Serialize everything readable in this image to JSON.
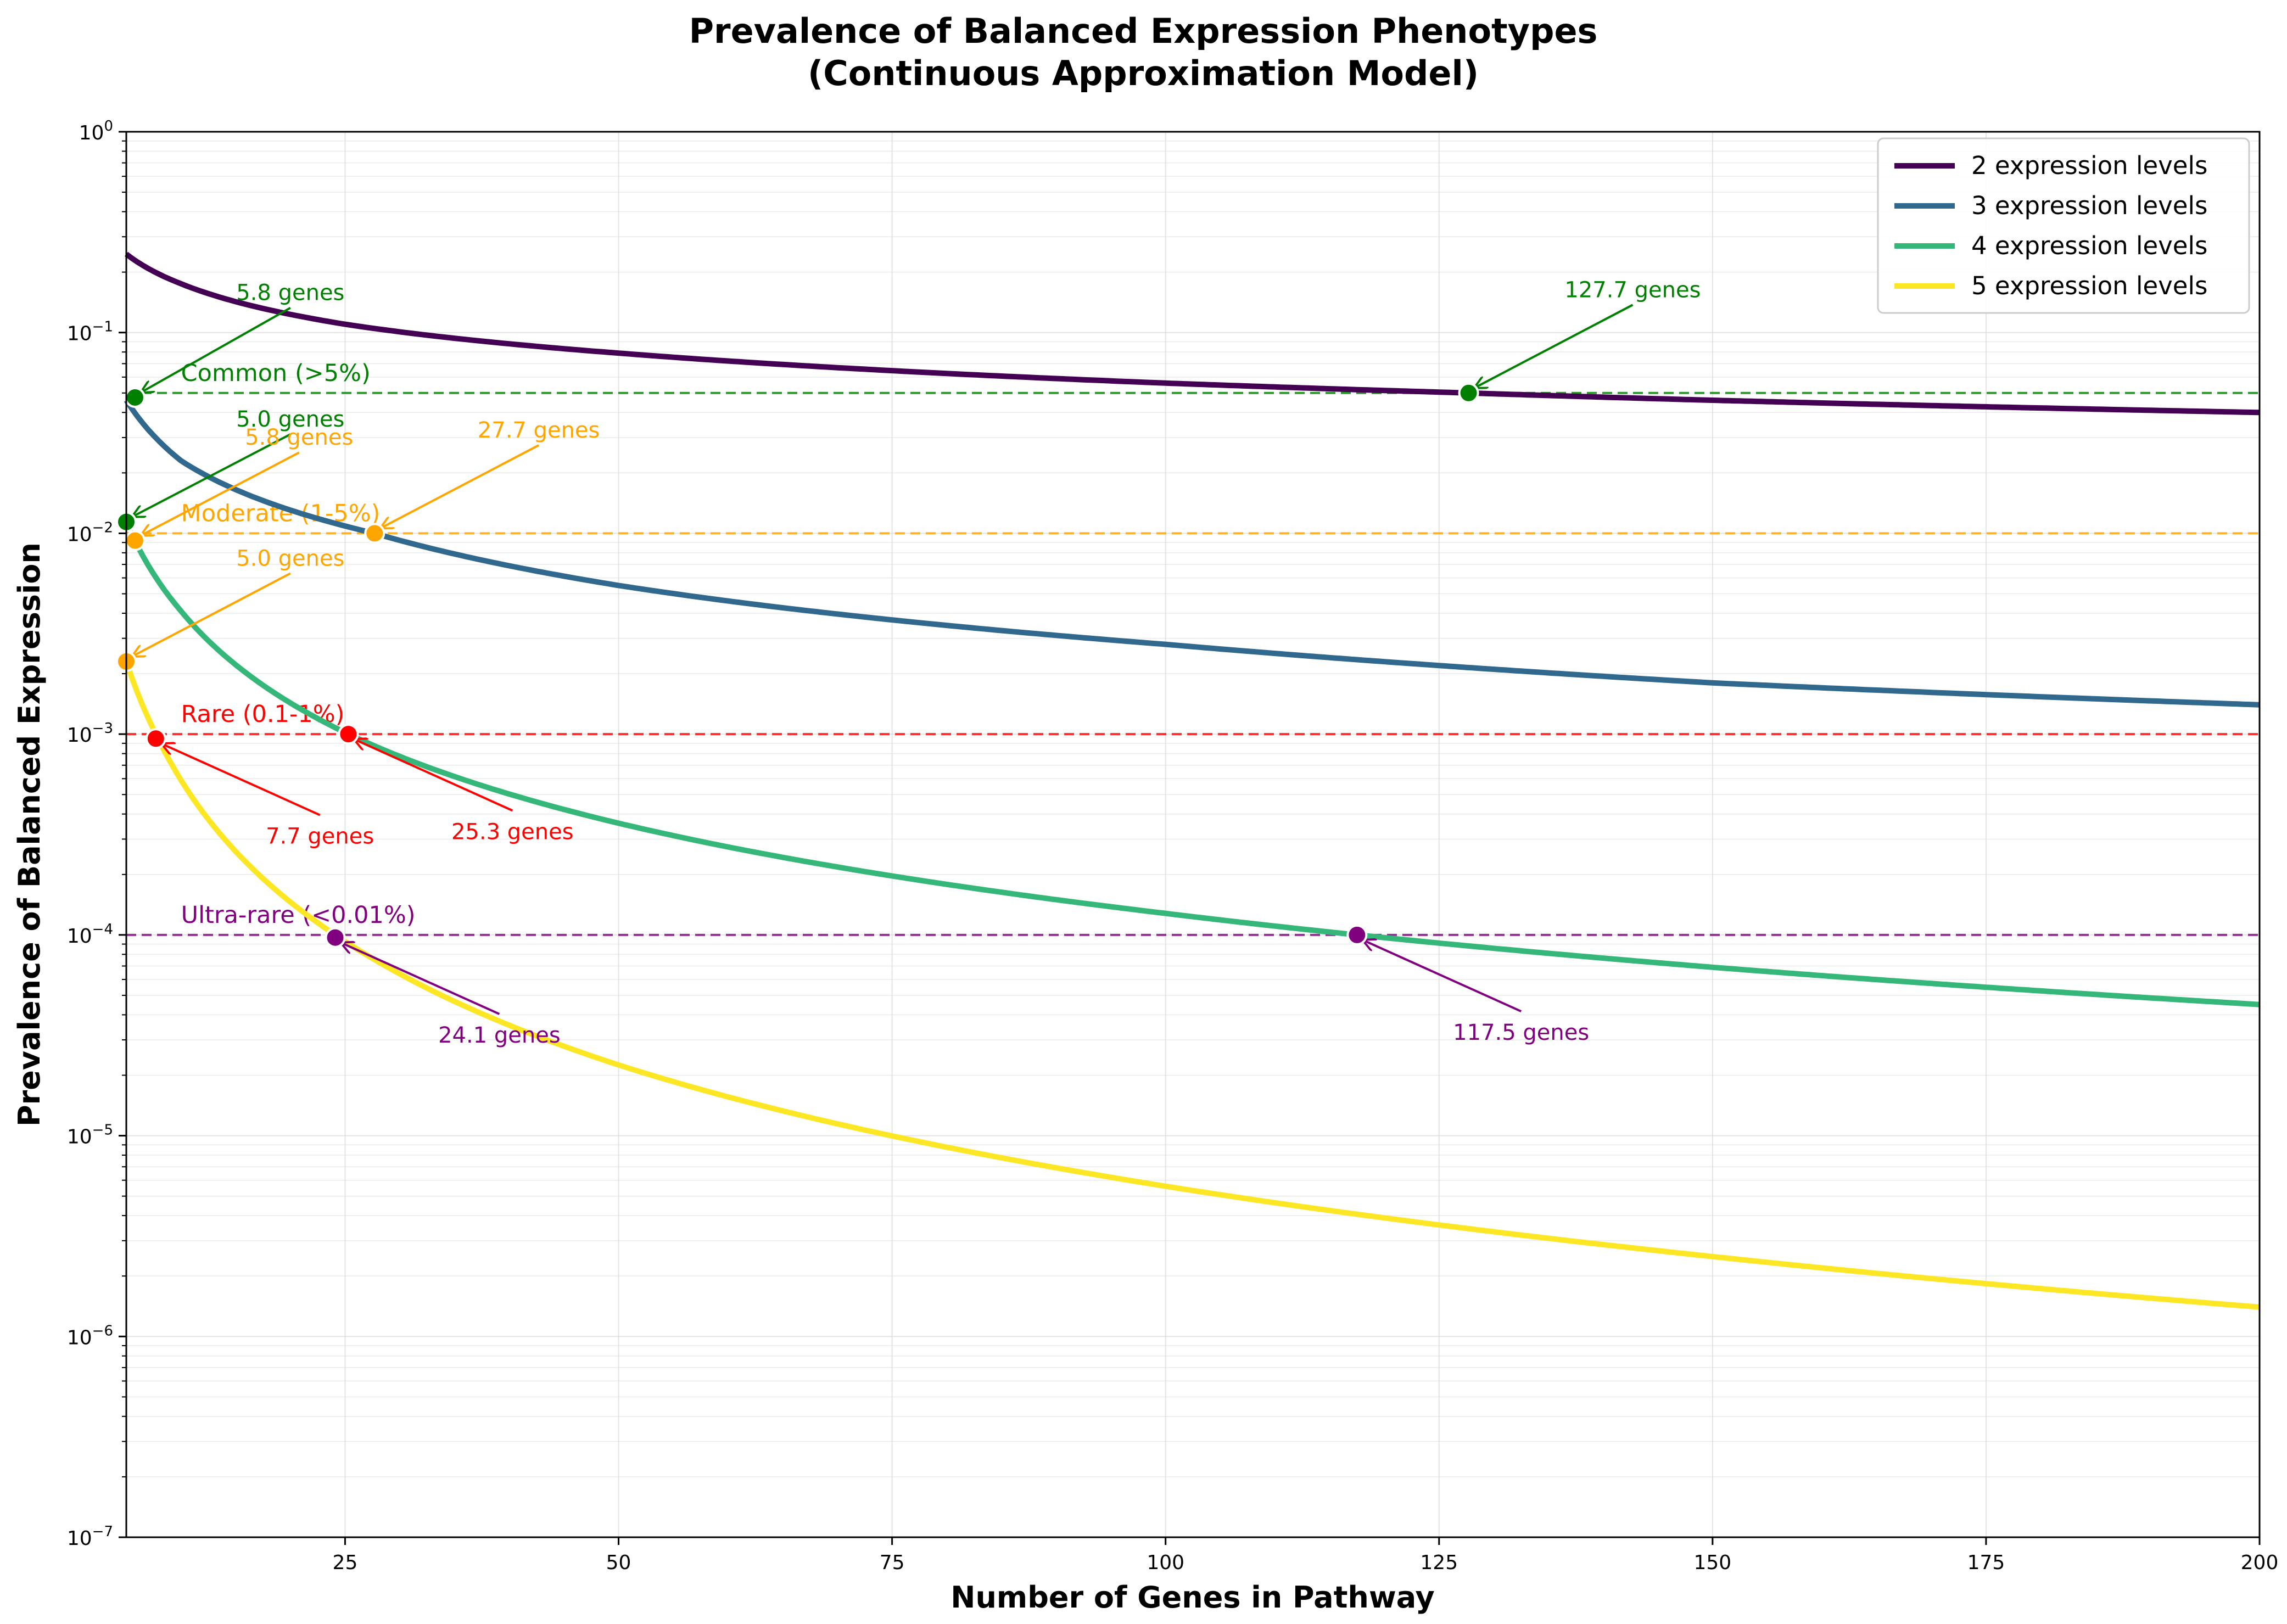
{
  "chart_data": {
    "type": "line",
    "title": "Prevalence of Balanced Expression Phenotypes",
    "subtitle": "(Continuous Approximation Model)",
    "xlabel": "Number of Genes in Pathway",
    "ylabel": "Prevalence of Balanced Expression",
    "xlim": [
      5,
      200
    ],
    "ylim": [
      1e-07,
      1
    ],
    "yscale": "log",
    "grid": true,
    "legend_position": "top-right",
    "x_ticks": [
      "25",
      "50",
      "75",
      "100",
      "125",
      "150",
      "175",
      "200"
    ],
    "y_ticks": [
      {
        "base": "10",
        "exp": "0",
        "value": 1
      },
      {
        "base": "10",
        "exp": "−1",
        "value": 0.1
      },
      {
        "base": "10",
        "exp": "−2",
        "value": 0.01
      },
      {
        "base": "10",
        "exp": "−3",
        "value": 0.001
      },
      {
        "base": "10",
        "exp": "−4",
        "value": 0.0001
      },
      {
        "base": "10",
        "exp": "−5",
        "value": 1e-05
      },
      {
        "base": "10",
        "exp": "−6",
        "value": 1e-06
      },
      {
        "base": "10",
        "exp": "−7",
        "value": 1e-07
      }
    ],
    "series": [
      {
        "name": "2 expression levels",
        "color": "#440154",
        "k": 2,
        "x": [
          5,
          10,
          25,
          50,
          100,
          127.7,
          150,
          200
        ],
        "y": [
          0.246,
          0.175,
          0.11,
          0.079,
          0.056,
          0.05,
          0.046,
          0.04
        ]
      },
      {
        "name": "3 expression levels",
        "color": "#31688e",
        "k": 3,
        "x": [
          5,
          10,
          27.7,
          50,
          100,
          150,
          200
        ],
        "y": [
          0.046,
          0.023,
          0.01,
          0.0055,
          0.0028,
          0.0018,
          0.0014
        ]
      },
      {
        "name": "4 expression levels",
        "color": "#35b779",
        "k": 4,
        "x": [
          5,
          10,
          25.3,
          50,
          100,
          117.5,
          150,
          200
        ],
        "y": [
          0.0114,
          0.0041,
          0.001,
          0.00036,
          0.000128,
          0.0001,
          6.9e-05,
          4.5e-05
        ]
      },
      {
        "name": "5 expression levels",
        "color": "#fde725",
        "k": 5,
        "x": [
          5,
          7.7,
          24.1,
          50,
          100,
          150,
          200
        ],
        "y": [
          0.0023,
          0.001,
          0.0001,
          2.25e-05,
          5.6e-06,
          2.5e-06,
          1.4e-06
        ]
      }
    ],
    "thresholds": [
      {
        "label": "Common (>5%)",
        "value": 0.05,
        "color": "#008000"
      },
      {
        "label": "Moderate (1-5%)",
        "value": 0.01,
        "color": "#ffa500"
      },
      {
        "label": "Rare (0.1-1%)",
        "value": 0.001,
        "color": "#ff0000"
      },
      {
        "label": "Ultra-rare (<0.01%)",
        "value": 0.0001,
        "color": "#800080"
      }
    ],
    "annotations": [
      {
        "label": "5.8 genes",
        "x": 5.8,
        "y": 0.0475,
        "color": "#008000",
        "text_x": 20,
        "text_y": 0.145
      },
      {
        "label": "127.7 genes",
        "x": 127.7,
        "y": 0.05,
        "color": "#008000",
        "text_x": 142.7,
        "text_y": 0.15
      },
      {
        "label": "5.0 genes",
        "x": 5.0,
        "y": 0.0114,
        "color": "#008000",
        "text_x": 20,
        "text_y": 0.034
      },
      {
        "label": "5.8 genes",
        "x": 5.8,
        "y": 0.0092,
        "color": "#ffa500",
        "text_x": 20.8,
        "text_y": 0.0276
      },
      {
        "label": "27.7 genes",
        "x": 27.7,
        "y": 0.01,
        "color": "#ffa500",
        "text_x": 42.7,
        "text_y": 0.03
      },
      {
        "label": "5.0 genes",
        "x": 5.0,
        "y": 0.0023,
        "color": "#ffa500",
        "text_x": 20,
        "text_y": 0.0069
      },
      {
        "label": "7.7 genes",
        "x": 7.7,
        "y": 0.00095,
        "color": "#ff0000",
        "text_x": 22.7,
        "text_y": 0.000285
      },
      {
        "label": "25.3 genes",
        "x": 25.3,
        "y": 0.001,
        "color": "#ff0000",
        "text_x": 40.3,
        "text_y": 0.0003
      },
      {
        "label": "24.1 genes",
        "x": 24.1,
        "y": 9.7e-05,
        "color": "#800080",
        "text_x": 39.1,
        "text_y": 2.91e-05
      },
      {
        "label": "117.5 genes",
        "x": 117.5,
        "y": 0.0001,
        "color": "#800080",
        "text_x": 132.5,
        "text_y": 3e-05
      }
    ]
  }
}
